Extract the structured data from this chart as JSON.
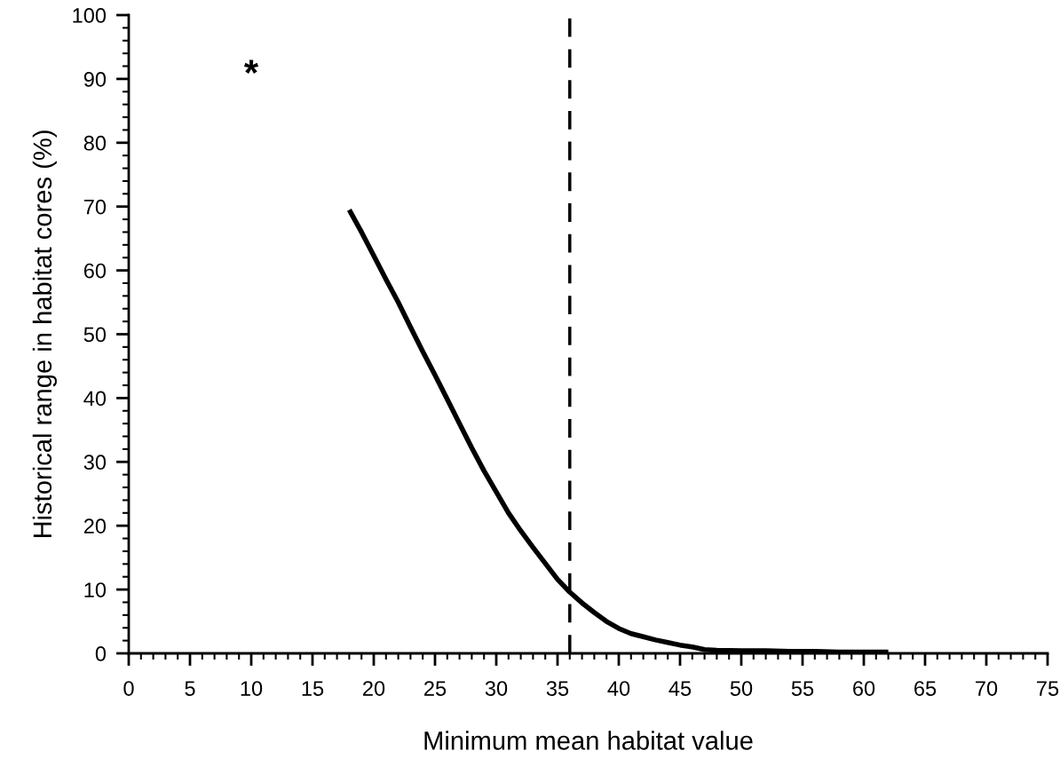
{
  "chart_data": {
    "type": "line",
    "xlabel": "Minimum mean habitat value",
    "ylabel": "Historical range in habitat cores (%)",
    "series": [
      {
        "color": "#000000",
        "x": [
          18,
          19,
          20,
          21,
          22,
          23,
          24,
          25,
          26,
          27,
          28,
          29,
          30,
          31,
          32,
          33,
          34,
          35,
          36,
          37,
          38,
          39,
          40,
          41,
          42,
          43,
          44,
          45,
          46,
          47,
          48,
          50,
          52,
          54,
          56,
          58,
          60,
          62
        ],
        "values": [
          69.5,
          66,
          62.3,
          58.6,
          55,
          51.1,
          47.3,
          43.6,
          39.8,
          36,
          32.2,
          28.6,
          25.3,
          22,
          19.2,
          16.6,
          14.1,
          11.6,
          9.6,
          7.9,
          6.4,
          5,
          3.9,
          3.1,
          2.6,
          2.1,
          1.7,
          1.3,
          1,
          0.6,
          0.5,
          0.4,
          0.4,
          0.3,
          0.3,
          0.2,
          0.2,
          0.2
        ]
      }
    ],
    "xlim": [
      0,
      75
    ],
    "xticks": [
      0,
      5,
      10,
      15,
      20,
      25,
      30,
      35,
      40,
      45,
      50,
      55,
      60,
      65,
      70,
      75
    ],
    "ylim": [
      0,
      100
    ],
    "yticks": [
      0,
      10,
      20,
      30,
      40,
      50,
      60,
      70,
      80,
      90,
      100
    ],
    "ref_lines": [
      {
        "axis": "x",
        "value": 36,
        "color": "#000000",
        "line_style": "dashed"
      }
    ],
    "annotations": [
      "*"
    ],
    "grid": false,
    "legend": false,
    "marker": "none",
    "line_style": "solid"
  }
}
